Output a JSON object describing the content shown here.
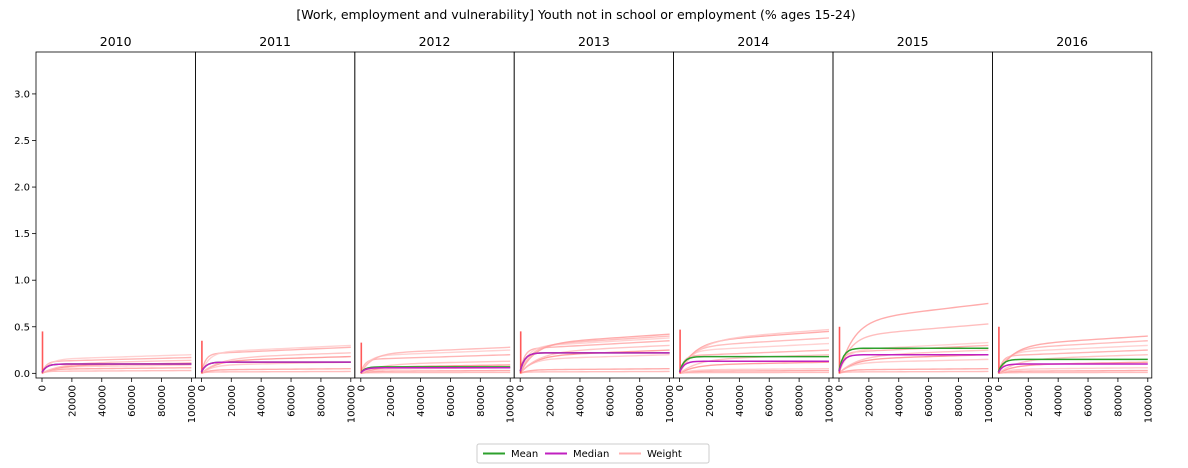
{
  "chart_data": {
    "type": "line",
    "title": "[Work, employment and vulnerability] Youth not in school or employment (% ages 15-24)",
    "panels": [
      "2010",
      "2011",
      "2012",
      "2013",
      "2014",
      "2015",
      "2016"
    ],
    "xlim": [
      0,
      100000
    ],
    "ylim": [
      -0.05,
      3.45
    ],
    "x_ticks": [
      0,
      20000,
      40000,
      60000,
      80000,
      100000
    ],
    "y_ticks": [
      "0.0",
      "0.5",
      "1.0",
      "1.5",
      "2.0",
      "2.5",
      "3.0"
    ],
    "legend": {
      "position": "bottom-center",
      "entries": [
        {
          "label": "Mean",
          "color": "#2ca02c"
        },
        {
          "label": "Median",
          "color": "#c020c0"
        },
        {
          "label": "Weight",
          "color": "#ffb0b0"
        }
      ]
    },
    "series": [
      {
        "name": "Mean",
        "values": [
          0.1,
          0.12,
          0.07,
          0.22,
          0.18,
          0.27,
          0.15
        ]
      },
      {
        "name": "Median",
        "values": [
          0.1,
          0.12,
          0.06,
          0.22,
          0.13,
          0.2,
          0.1
        ]
      }
    ],
    "weight_curves": [
      [
        0.03,
        0.06,
        0.09,
        0.11,
        0.14,
        0.17,
        0.2
      ],
      [
        0.02,
        0.05,
        0.12,
        0.18,
        0.22,
        0.28,
        0.3
      ],
      [
        0.01,
        0.03,
        0.06,
        0.09,
        0.13,
        0.2,
        0.25,
        0.28
      ],
      [
        0.02,
        0.05,
        0.2,
        0.25,
        0.3,
        0.35,
        0.38,
        0.4,
        0.42
      ],
      [
        0.01,
        0.03,
        0.05,
        0.12,
        0.2,
        0.25,
        0.32,
        0.38,
        0.45,
        0.47
      ],
      [
        0.02,
        0.05,
        0.15,
        0.2,
        0.25,
        0.3,
        0.33,
        0.53,
        0.75
      ],
      [
        0.01,
        0.03,
        0.06,
        0.12,
        0.2,
        0.25,
        0.3,
        0.35,
        0.4
      ]
    ]
  }
}
